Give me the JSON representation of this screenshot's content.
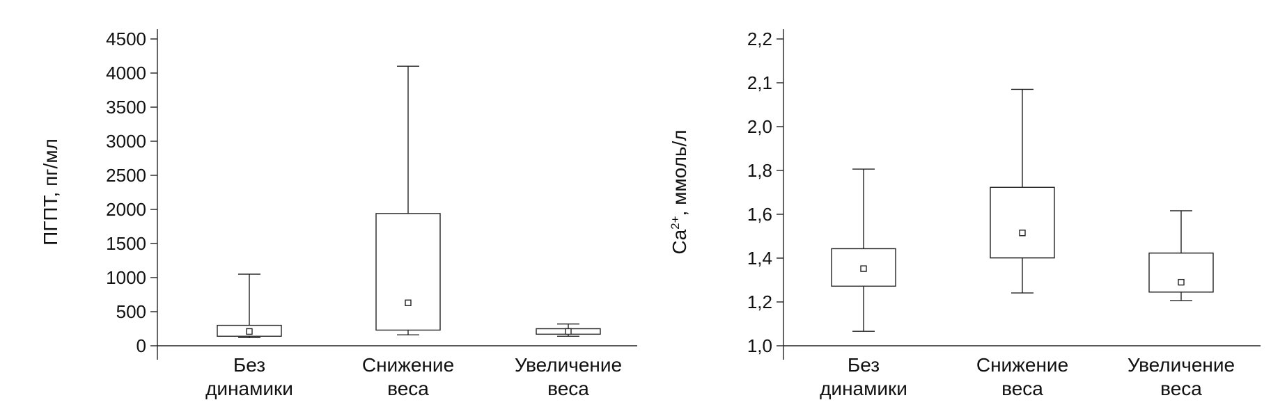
{
  "chart_data": [
    {
      "type": "box",
      "title": "",
      "xlabel": "",
      "ylabel": "ПГПТ, пг/мл",
      "ylim": [
        0,
        4500
      ],
      "yticks": [
        "0",
        "500",
        "1000",
        "1500",
        "2000",
        "2500",
        "3000",
        "3500",
        "4000",
        "4500"
      ],
      "ytick_values": [
        0,
        500,
        1000,
        1500,
        2000,
        2500,
        3000,
        3500,
        4000,
        4500
      ],
      "grid": false,
      "categories": [
        {
          "line1": "Без",
          "line2": "динамики"
        },
        {
          "line1": "Снижение",
          "line2": "веса"
        },
        {
          "line1": "Увеличение",
          "line2": "веса"
        }
      ],
      "boxes": [
        {
          "whisker_low": 120,
          "q1": 140,
          "mean": 210,
          "q3": 300,
          "whisker_high": 1050
        },
        {
          "whisker_low": 160,
          "q1": 230,
          "mean": 630,
          "q3": 1940,
          "whisker_high": 4100
        },
        {
          "whisker_low": 140,
          "q1": 170,
          "mean": 210,
          "q3": 250,
          "whisker_high": 320
        }
      ]
    },
    {
      "type": "box",
      "title": "",
      "xlabel": "",
      "ylabel_main": "Ca",
      "ylabel_sup": "2+",
      "ylabel_rest": ", ммоль/л",
      "ylim": [
        1.0,
        2.2
      ],
      "yticks": [
        "1,0",
        "1,2",
        "1,4",
        "1,6",
        "1,8",
        "2,0",
        "2,1",
        "2,2"
      ],
      "ytick_values": [
        1.0,
        1.2,
        1.4,
        1.6,
        1.8,
        2.0,
        2.1,
        2.2
      ],
      "grid": false,
      "categories": [
        {
          "line1": "Без",
          "line2": "динамики"
        },
        {
          "line1": "Снижение",
          "line2": "веса"
        },
        {
          "line1": "Увеличение",
          "line2": "веса"
        }
      ],
      "boxes": [
        {
          "whisker_low": 1.066,
          "q1": 1.272,
          "mean": 1.352,
          "q3": 1.443,
          "whisker_high": 1.806
        },
        {
          "whisker_low": 1.241,
          "q1": 1.401,
          "mean": 1.515,
          "q3": 1.723,
          "whisker_high": 2.085
        },
        {
          "whisker_low": 1.206,
          "q1": 1.245,
          "mean": 1.29,
          "q3": 1.423,
          "whisker_high": 1.616
        }
      ]
    }
  ]
}
